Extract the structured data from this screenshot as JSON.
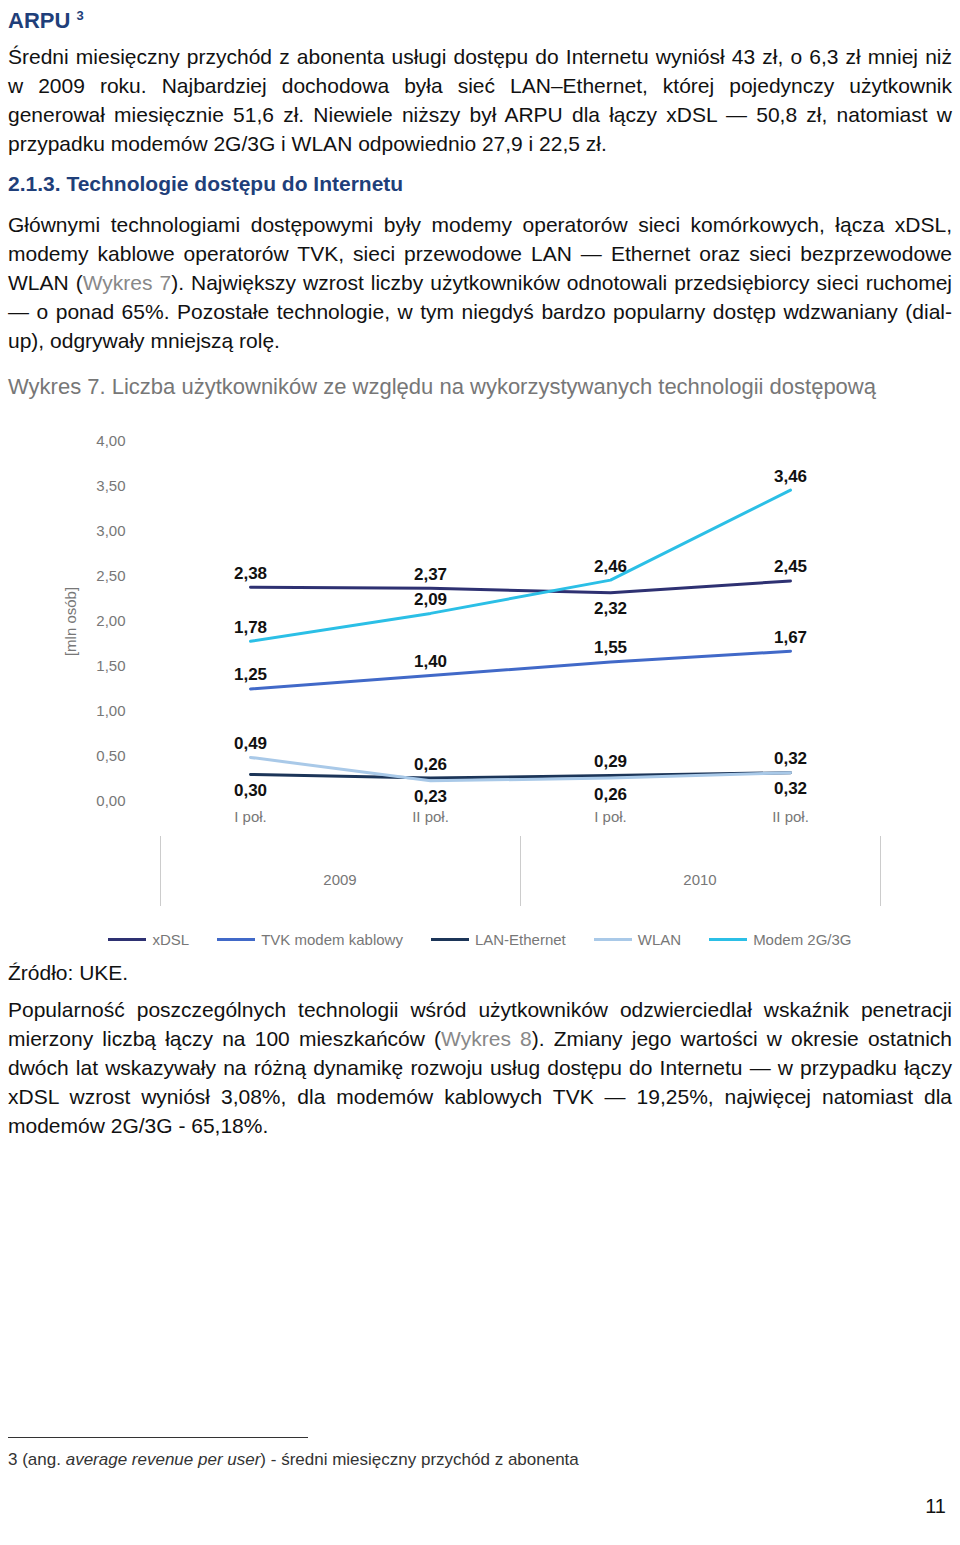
{
  "heading": {
    "text": "ARPU",
    "footnote_mark": "3"
  },
  "arpu_paragraph": [
    {
      "text": "Średni miesięczny przychód z abonenta usługi dostępu do Internetu wyniósł 43 zł, o 6,3 zł mniej niż w 2009 roku. Najbardziej dochodowa była sieć LAN–Ethernet, której pojedynczy użytkownik generował miesięcznie 51,6 zł. Niewiele niższy był ARPU dla łączy xDSL — 50,8 zł, natomiast w przypadku modemów 2G/3G i WLAN odpowiednio 27,9 i 22,5 zł."
    }
  ],
  "section_heading": "2.1.3. Technologie dostępu do Internetu",
  "technology_paragraph": [
    {
      "text": "Głównymi technologiami dostępowymi były modemy operatorów sieci komórkowych, łącza xDSL, modemy kablowe operatorów TVK, sieci przewodowe LAN — Ethernet oraz sieci bezprzewodowe WLAN ("
    },
    {
      "text": "Wykres 7",
      "style": "ref"
    },
    {
      "text": "). Największy wzrost liczby użytkowników odnotowali przedsiębiorcy sieci ruchomej — o ponad 65%. Pozostałe technologie, w tym niegdyś bardzo popularny dostęp wdzwaniany (dial-up), odgrywały mniejszą rolę."
    }
  ],
  "chart_caption": "Wykres 7. Liczba użytkowników ze względu na wykorzystywanych technologii dostępową",
  "chart_data": {
    "type": "line",
    "ylabel": "[mln osób]",
    "categories": [
      "I poł.",
      "II poł.",
      "I poł.",
      "II poł."
    ],
    "x_groups": [
      {
        "label": "2009",
        "size": 2
      },
      {
        "label": "2010",
        "size": 2
      }
    ],
    "ylim": [
      0,
      4
    ],
    "yticks": [
      {
        "value": 0,
        "label": "0,00"
      },
      {
        "value": 0.5,
        "label": "0,50"
      },
      {
        "value": 1,
        "label": "1,00"
      },
      {
        "value": 1.5,
        "label": "1,50"
      },
      {
        "value": 2,
        "label": "2,00"
      },
      {
        "value": 2.5,
        "label": "2,50"
      },
      {
        "value": 3,
        "label": "3,00"
      },
      {
        "value": 3.5,
        "label": "3,50"
      },
      {
        "value": 4,
        "label": "4,00"
      }
    ],
    "grid": false,
    "data_labels": true,
    "legend": "bottom",
    "series": [
      {
        "name": "xDSL",
        "color": "#2e3172",
        "values": [
          2.38,
          2.37,
          2.32,
          2.45
        ],
        "value_labels": [
          "2,38",
          "2,37",
          "2,32",
          "2,45"
        ]
      },
      {
        "name": "TVK modem kablowy",
        "color": "#4169c8",
        "values": [
          1.25,
          1.4,
          1.55,
          1.67
        ],
        "value_labels": [
          "1,25",
          "1,40",
          "1,55",
          "1,67"
        ]
      },
      {
        "name": "LAN-Ethernet",
        "color": "#1c3558",
        "values": [
          0.3,
          0.26,
          0.29,
          0.32
        ],
        "value_labels": [
          "0,30",
          "0,26",
          "0,29",
          "0,32"
        ]
      },
      {
        "name": "WLAN",
        "color": "#a9c9e8",
        "values": [
          0.49,
          0.23,
          0.26,
          0.32
        ],
        "value_labels": [
          "0,49",
          "0,23",
          "0,26",
          "0,32"
        ]
      },
      {
        "name": "Modem 2G/3G",
        "color": "#2bbfe6",
        "values": [
          1.78,
          2.09,
          2.46,
          3.46
        ],
        "value_labels": [
          "1,78",
          "2,09",
          "2,46",
          "3,46"
        ]
      }
    ]
  },
  "source": "Źródło: UKE.",
  "penetration_paragraph": [
    {
      "text": "Popularność poszczególnych technologii wśród użytkowników odzwierciedlał wskaźnik penetracji mierzony liczbą łączy na 100 mieszkańców ("
    },
    {
      "text": "Wykres 8",
      "style": "ref"
    },
    {
      "text": "). Zmiany jego wartości w okresie ostatnich dwóch lat wskazywały na różną dynamikę rozwoju usług dostępu do Internetu — w przypadku łączy xDSL wzrost wyniósł 3,08%, dla modemów kablowych TVK — 19,25%, najwięcej natomiast dla modemów 2G/3G - 65,18%."
    }
  ],
  "footnote": {
    "mark": "3",
    "runs": [
      {
        "text": " (ang. "
      },
      {
        "text": "average revenue per user",
        "style": "italic"
      },
      {
        "text": ") - średni miesięczny przychód z abonenta"
      }
    ]
  },
  "page_number": "11"
}
